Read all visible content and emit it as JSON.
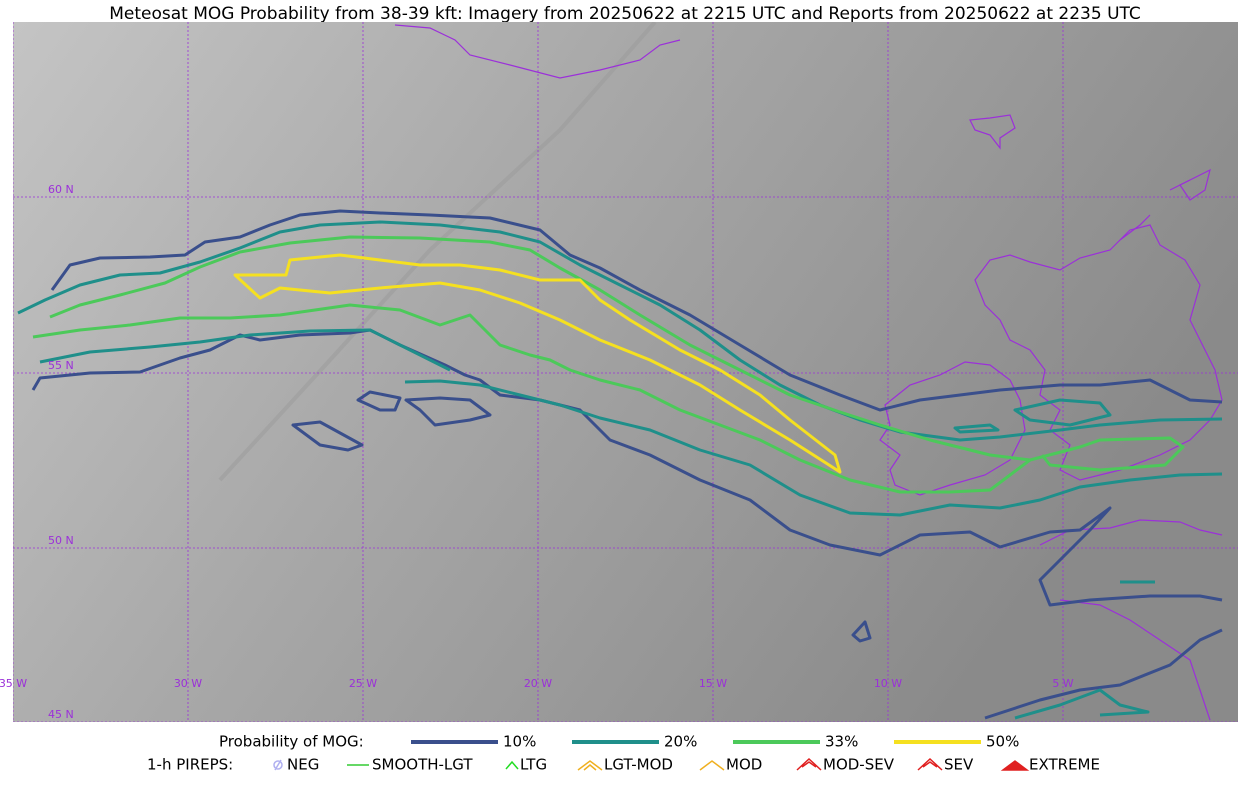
{
  "title": "Meteosat MOG Probability from 38-39 kft: Imagery from 20250622 at 2215 UTC and Reports from 20250622 at 2235 UTC",
  "map": {
    "lat_labels": [
      "60 N",
      "55 N",
      "50 N",
      "45 N"
    ],
    "lon_labels": [
      "35 W",
      "30 W",
      "25 W",
      "20 W",
      "15 W",
      "10 W",
      "5 W"
    ]
  },
  "legend": {
    "probability": {
      "title": "Probability of MOG:",
      "items": [
        {
          "label": "10%",
          "color": "#3a4f8c"
        },
        {
          "label": "20%",
          "color": "#1f8f8a"
        },
        {
          "label": "33%",
          "color": "#4cc95a"
        },
        {
          "label": "50%",
          "color": "#f5e020"
        }
      ]
    },
    "pireps": {
      "title": "1-h PIREPS:",
      "items": [
        {
          "label": "NEG",
          "color": "#b0b0f0"
        },
        {
          "label": "SMOOTH-LGT",
          "color": "#33cc33"
        },
        {
          "label": "LTG",
          "color": "#22dd22"
        },
        {
          "label": "LGT-MOD",
          "color": "#f0b020"
        },
        {
          "label": "MOD",
          "color": "#f0b020"
        },
        {
          "label": "MOD-SEV",
          "color": "#e02020"
        },
        {
          "label": "SEV",
          "color": "#e02020"
        },
        {
          "label": "EXTREME",
          "color": "#e02020"
        }
      ]
    }
  }
}
